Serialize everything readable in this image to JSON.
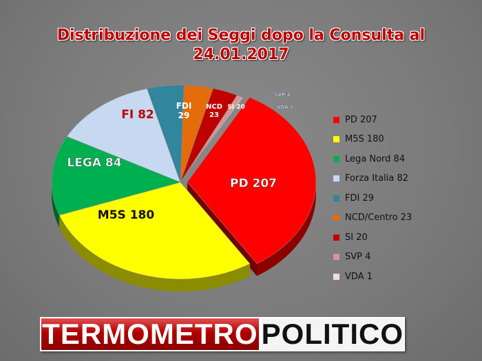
{
  "title_line1": "Distribuzione dei Seggi dopo la Consulta al",
  "title_line2": "24.01.2017",
  "chart_data": {
    "type": "pie",
    "title": "Distribuzione dei Seggi dopo la Consulta al 24.01.2017",
    "series": [
      {
        "name": "PD 207",
        "value": 207,
        "color": "#ff0000",
        "label": "PD 207",
        "label_color": "#ffffff"
      },
      {
        "name": "M5S 180",
        "value": 180,
        "color": "#ffff00",
        "label": "M5S 180",
        "label_color": "#111111"
      },
      {
        "name": "Lega Nord 84",
        "value": 84,
        "color": "#00b050",
        "label": "LEGA 84",
        "label_color": "#ffffff"
      },
      {
        "name": "Forza Italia 82",
        "value": 82,
        "color": "#c6d9f1",
        "label": "FI 82",
        "label_color": "#c00000"
      },
      {
        "name": "FDI 29",
        "value": 29,
        "color": "#31859c",
        "label": "FDI 29",
        "label_color": "#ffffff"
      },
      {
        "name": "NCD/Centro 23",
        "value": 23,
        "color": "#e46c0a",
        "label": "NCD 23",
        "label_color": "#ffffff"
      },
      {
        "name": "SI 20",
        "value": 20,
        "color": "#c00000",
        "label": "SI 20",
        "label_color": "#ffffff"
      },
      {
        "name": "SVP 4",
        "value": 4,
        "color": "#d99694",
        "label": "SVP 4",
        "label_color": "#dce6f2"
      },
      {
        "name": "VDA 1",
        "value": 1,
        "color": "#f2dcdb",
        "label": "VDA 1",
        "label_color": "#dce6f2"
      }
    ],
    "legend_position": "right"
  },
  "banner": {
    "left_text": "TERMOMETRO",
    "right_text": "POLITICO"
  }
}
